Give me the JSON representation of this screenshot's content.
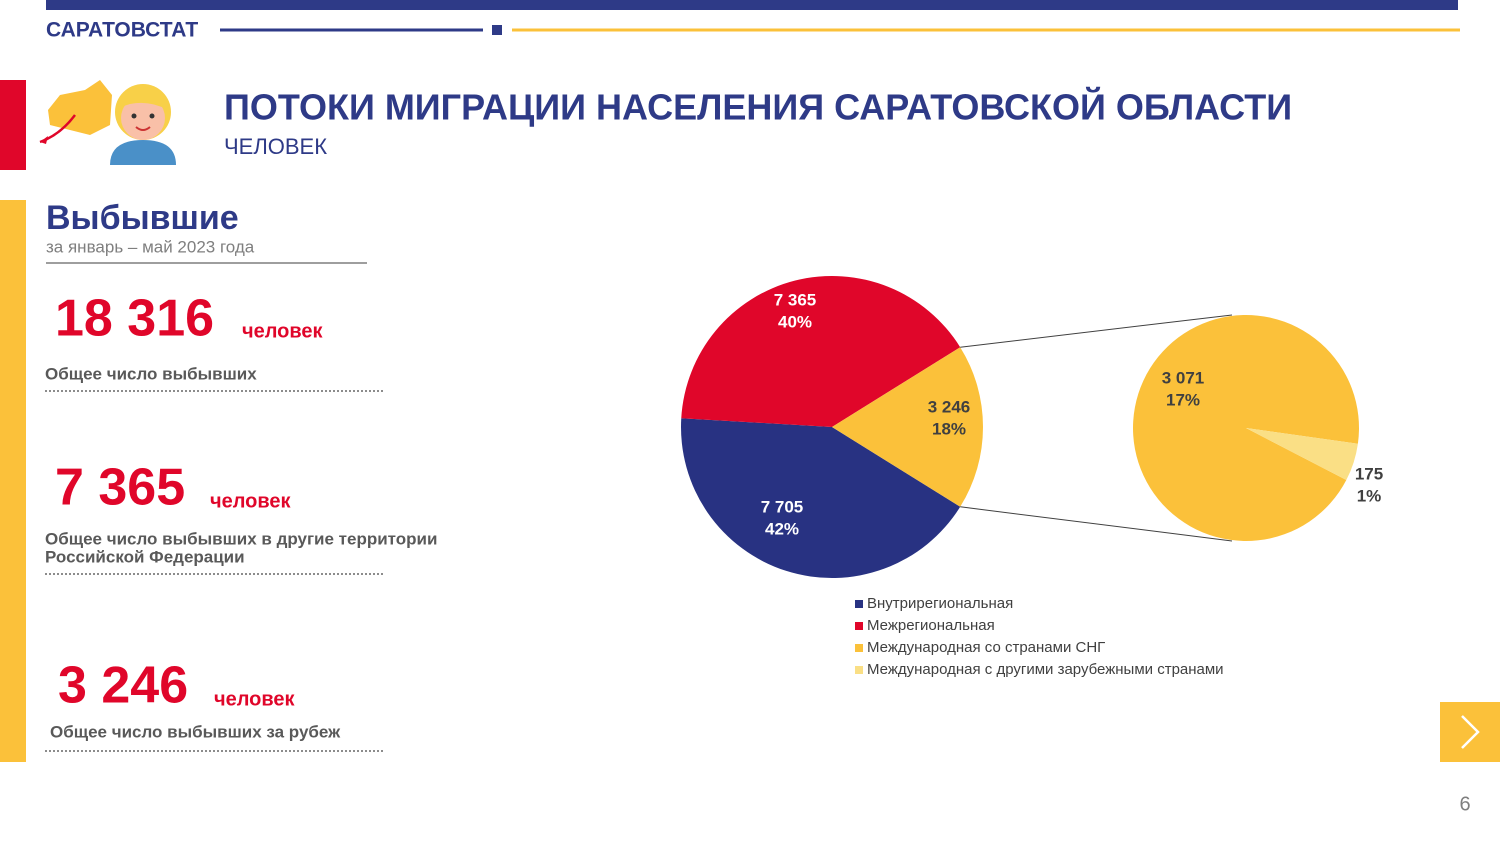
{
  "header": {
    "org": "САРАТОВСТАТ",
    "title": "ПОТОКИ МИГРАЦИИ НАСЕЛЕНИЯ САРАТОВСКОЙ ОБЛАСТИ",
    "subtitle": "ЧЕЛОВЕК"
  },
  "section": {
    "title": "Выбывшие",
    "period": "за январь – май 2023 года"
  },
  "stats": [
    {
      "number": "18 316",
      "unit": "человек",
      "caption": "Общее число выбывших"
    },
    {
      "number": "7 365",
      "unit": "человек",
      "caption": "Общее число выбывших в другие  территории",
      "caption2": "Российской  Федерации"
    },
    {
      "number": "3 246",
      "unit": "человек",
      "caption": "Общее число выбывших  за рубеж"
    }
  ],
  "chart_data": {
    "type": "pie_of_pie",
    "categories": [
      "Внутрирегиональная",
      "Межрегиональная",
      "Международная со странами СНГ",
      "Международная с другими зарубежными странами"
    ],
    "colors": [
      "#283282",
      "#e0062a",
      "#fbc13a",
      "#fadf85"
    ],
    "values": [
      7705,
      7365,
      3071,
      175
    ],
    "value_labels": [
      "7 705",
      "7 365",
      "3 071",
      "175"
    ],
    "percents": [
      42,
      40,
      17,
      1
    ],
    "percent_labels": [
      "42%",
      "40%",
      "17%",
      "1%"
    ],
    "combined": {
      "value": 3246,
      "value_label": "3 246",
      "percent": 18,
      "percent_label": "18%"
    }
  },
  "page_number": "6"
}
